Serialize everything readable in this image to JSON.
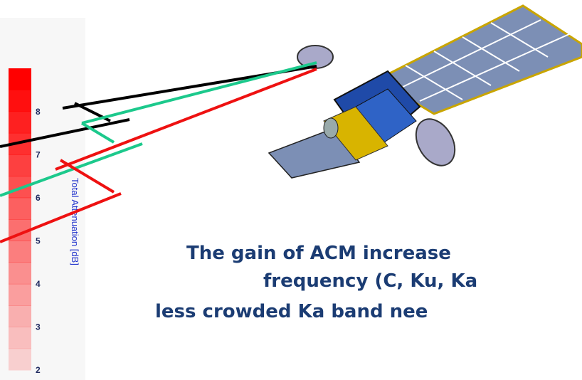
{
  "scale": {
    "ticks": [
      "8",
      "7",
      "6",
      "5",
      "4",
      "3",
      "2"
    ],
    "label": "Total Attenuation [dB]"
  },
  "text": {
    "lines": [
      "The gain of ACM increase",
      "frequency (C, Ku, Ka",
      "less crowded Ka band nee"
    ]
  }
}
